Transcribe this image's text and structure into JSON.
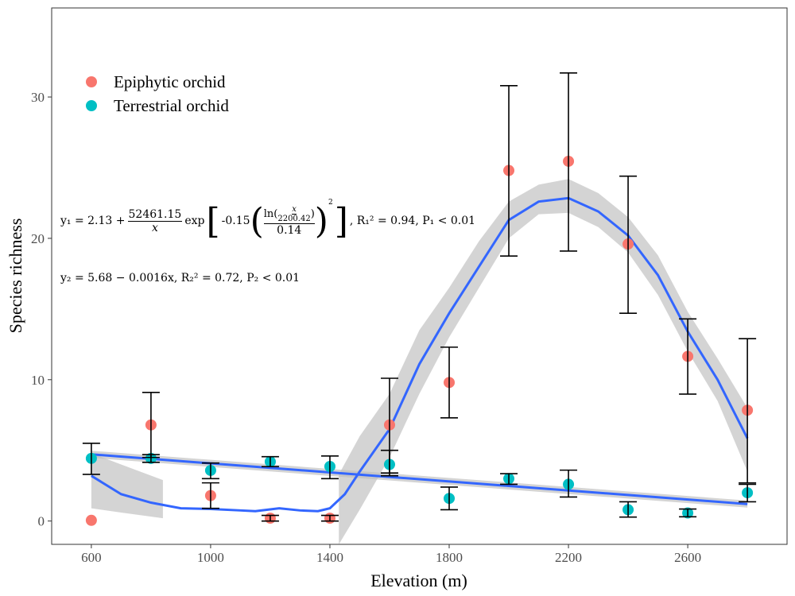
{
  "chart_data": {
    "type": "scatter",
    "xlabel": "Elevation (m)",
    "ylabel": "Species richness",
    "xlim": [
      467,
      2933
    ],
    "ylim": [
      -1.65,
      36.3
    ],
    "xticks": [
      600,
      1000,
      1400,
      1800,
      2200,
      2600
    ],
    "yticks": [
      0,
      10,
      20,
      30
    ],
    "grid": false,
    "legend_placement": "top-left",
    "series": [
      {
        "name": "Epiphytic orchid",
        "color": "#F8766D",
        "points": [
          [
            600,
            0.05,
            null,
            null
          ],
          [
            800,
            6.8,
            4.5,
            9.1
          ],
          [
            1000,
            1.8,
            0.9,
            2.7
          ],
          [
            1200,
            0.2,
            0.0,
            0.4
          ],
          [
            1400,
            0.2,
            0.0,
            0.4
          ],
          [
            1600,
            6.8,
            3.4,
            10.1
          ],
          [
            1800,
            9.8,
            7.3,
            12.3
          ],
          [
            2000,
            24.8,
            18.75,
            30.8
          ],
          [
            2200,
            25.45,
            19.1,
            31.7
          ],
          [
            2400,
            19.6,
            14.7,
            24.4
          ],
          [
            2600,
            11.65,
            8.98,
            14.3
          ],
          [
            2800,
            7.84,
            2.7,
            12.9
          ]
        ],
        "smooth": [
          [
            600,
            3.2
          ],
          [
            700,
            1.9
          ],
          [
            800,
            1.3
          ],
          [
            900,
            0.9
          ],
          [
            1000,
            0.85
          ],
          [
            1100,
            0.75
          ],
          [
            1150,
            0.7
          ],
          [
            1230,
            0.9
          ],
          [
            1300,
            0.75
          ],
          [
            1360,
            0.7
          ],
          [
            1400,
            0.9
          ],
          [
            1450,
            1.9
          ],
          [
            1500,
            3.5
          ],
          [
            1600,
            6.5
          ],
          [
            1700,
            11.1
          ],
          [
            1800,
            14.7
          ],
          [
            1900,
            18.0
          ],
          [
            2000,
            21.3
          ],
          [
            2100,
            22.6
          ],
          [
            2200,
            22.85
          ],
          [
            2300,
            21.9
          ],
          [
            2400,
            20.2
          ],
          [
            2500,
            17.4
          ],
          [
            2600,
            13.4
          ],
          [
            2700,
            10
          ],
          [
            2800,
            5.85
          ]
        ],
        "ribbon": [
          [
            [
              600,
              0.9,
              4.8
            ],
            [
              700,
              0.6,
              4.0
            ],
            [
              840,
              0.2,
              2.9
            ]
          ],
          [
            [
              1430,
              -1.65,
              3.3
            ],
            [
              1500,
              0.8,
              6
            ],
            [
              1600,
              4.5,
              9
            ],
            [
              1700,
              9,
              13.5
            ],
            [
              1800,
              13,
              16.5
            ],
            [
              1900,
              16.5,
              19.8
            ],
            [
              2000,
              20,
              22.6
            ],
            [
              2100,
              21.7,
              23.8
            ],
            [
              2200,
              21.8,
              24.2
            ],
            [
              2300,
              20.8,
              23.2
            ],
            [
              2400,
              19,
              21.5
            ],
            [
              2500,
              16,
              18.8
            ],
            [
              2600,
              12,
              14.8
            ],
            [
              2700,
              8.5,
              11.5
            ],
            [
              2800,
              3.5,
              8
            ]
          ]
        ]
      },
      {
        "name": "Terrestrial orchid",
        "color": "#00BFC4",
        "points": [
          [
            600,
            4.43,
            3.3,
            5.5
          ],
          [
            800,
            4.43,
            4.15,
            4.7
          ],
          [
            1000,
            3.58,
            3.0,
            4.1
          ],
          [
            1200,
            4.2,
            3.85,
            4.55
          ],
          [
            1400,
            3.86,
            3.0,
            4.6
          ],
          [
            1600,
            4.0,
            3.2,
            5.0
          ],
          [
            1800,
            1.6,
            0.8,
            2.4
          ],
          [
            2000,
            3.0,
            2.6,
            3.35
          ],
          [
            2200,
            2.6,
            1.7,
            3.6
          ],
          [
            2400,
            0.8,
            0.28,
            1.36
          ],
          [
            2600,
            0.57,
            0.3,
            0.85
          ],
          [
            2800,
            2.0,
            1.36,
            2.6
          ]
        ],
        "fit": {
          "intercept": 5.68,
          "slope": -0.0016,
          "se": 0.25
        }
      }
    ],
    "fit_color": "#3366FF",
    "annotations": {
      "eq1": "y₁ = 2.13 + (52461.15 / x) exp[ -0.15 ( ln(x / 2200.42) / 0.14 )² ],  R₁² = 0.94,  P₁ < 0.01",
      "eq1_parts": {
        "lhs": "y₁ = 2.13 + ",
        "num": "52461.15",
        "den": "x",
        "exp": "exp",
        "coef": "-0.15",
        "lnnum": "x",
        "lnden": "2200.42",
        "ln": "ln",
        "div": "0.14",
        "sq": "2",
        "stats": ",  R₁² = 0.94,  P₁ < 0.01"
      },
      "eq2": "y₂ = 5.68 − 0.0016x,  R₂² = 0.72,  P₂ < 0.01"
    }
  }
}
